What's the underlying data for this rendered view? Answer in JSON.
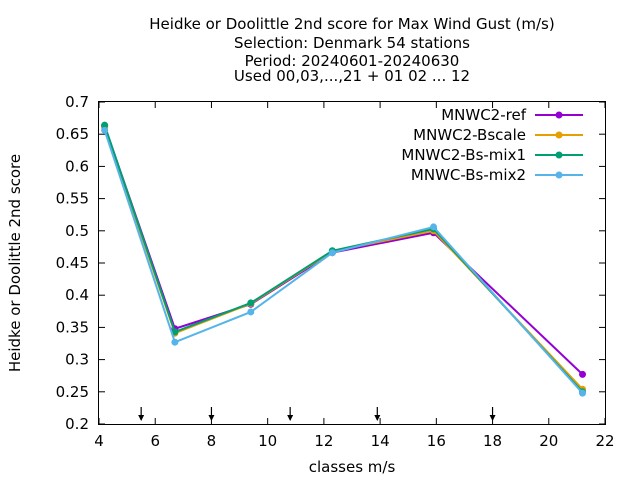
{
  "chart_data": {
    "type": "line",
    "title_lines": [
      "Heidke or Doolittle 2nd score  for Max Wind Gust (m/s)",
      "Selection: Denmark     54 stations",
      "Period: 20240601-20240630",
      "Used 00,03,...,21 + 01 02 ... 12"
    ],
    "xlabel": "classes m/s",
    "ylabel": "Heidke or Doolittle 2nd score",
    "xlim": [
      4,
      22
    ],
    "ylim": [
      0.2,
      0.7
    ],
    "x_ticks": [
      4,
      6,
      8,
      10,
      12,
      14,
      16,
      18,
      20,
      22
    ],
    "y_ticks": [
      "0.2",
      "0.25",
      "0.3",
      "0.35",
      "0.4",
      "0.45",
      "0.5",
      "0.55",
      "0.6",
      "0.65",
      "0.7"
    ],
    "class_boundaries": [
      5.5,
      8,
      10.8,
      13.9,
      18
    ],
    "legend_position": "top-right",
    "series": [
      {
        "name": "MNWC2-ref",
        "color": "#9400d3",
        "x": [
          4.2,
          6.7,
          9.4,
          12.3,
          15.9,
          21.2
        ],
        "values": [
          0.663,
          0.348,
          0.386,
          0.466,
          0.497,
          0.277
        ]
      },
      {
        "name": "MNWC2-Bscale",
        "color": "#e69f00",
        "x": [
          4.2,
          6.7,
          9.4,
          12.3,
          15.9,
          21.2
        ],
        "values": [
          0.66,
          0.341,
          0.387,
          0.468,
          0.5,
          0.254
        ]
      },
      {
        "name": "MNWC2-Bs-mix1",
        "color": "#009e73",
        "x": [
          4.2,
          6.7,
          9.4,
          12.3,
          15.9,
          21.2
        ],
        "values": [
          0.664,
          0.343,
          0.388,
          0.469,
          0.503,
          0.25
        ]
      },
      {
        "name": "MNWC-Bs-mix2",
        "color": "#56b4e9",
        "x": [
          4.2,
          6.7,
          9.4,
          12.3,
          15.9,
          21.2
        ],
        "values": [
          0.656,
          0.327,
          0.374,
          0.466,
          0.506,
          0.248
        ]
      }
    ]
  }
}
